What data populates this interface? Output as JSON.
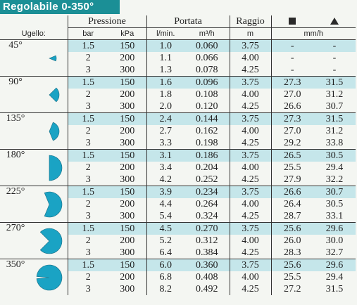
{
  "title": "Regolabile 0-350°",
  "headers": {
    "ugello": "Ugello:",
    "pressione": "Pressione",
    "portata": "Portata",
    "raggio": "Raggio",
    "square_icon": "square-icon",
    "triangle_icon": "triangle-icon",
    "bar": "bar",
    "kpa": "kPa",
    "lmin": "l/min.",
    "m3h": "m³/h",
    "m": "m",
    "mmh": "mm/h"
  },
  "colors": {
    "accent": "#1b8f96",
    "icon_fill": "#1aa3c4",
    "row_tint": "#c5e6ea"
  },
  "groups": [
    {
      "angle": "45°",
      "rows": [
        {
          "bar": "1.5",
          "kpa": "150",
          "lmin": "1.0",
          "m3h": "0.060",
          "m": "3.75",
          "sq": "-",
          "tri": "-"
        },
        {
          "bar": "2",
          "kpa": "200",
          "lmin": "1.1",
          "m3h": "0.066",
          "m": "4.00",
          "sq": "-",
          "tri": "-"
        },
        {
          "bar": "3",
          "kpa": "300",
          "lmin": "1.3",
          "m3h": "0.078",
          "m": "4.25",
          "sq": "-",
          "tri": "-"
        }
      ]
    },
    {
      "angle": "90°",
      "rows": [
        {
          "bar": "1.5",
          "kpa": "150",
          "lmin": "1.6",
          "m3h": "0.096",
          "m": "3.75",
          "sq": "27.3",
          "tri": "31.5"
        },
        {
          "bar": "2",
          "kpa": "200",
          "lmin": "1.8",
          "m3h": "0.108",
          "m": "4.00",
          "sq": "27.0",
          "tri": "31.2"
        },
        {
          "bar": "3",
          "kpa": "300",
          "lmin": "2.0",
          "m3h": "0.120",
          "m": "4.25",
          "sq": "26.6",
          "tri": "30.7"
        }
      ]
    },
    {
      "angle": "135°",
      "rows": [
        {
          "bar": "1.5",
          "kpa": "150",
          "lmin": "2.4",
          "m3h": "0.144",
          "m": "3.75",
          "sq": "27.3",
          "tri": "31.5"
        },
        {
          "bar": "2",
          "kpa": "200",
          "lmin": "2.7",
          "m3h": "0.162",
          "m": "4.00",
          "sq": "27.0",
          "tri": "31.2"
        },
        {
          "bar": "3",
          "kpa": "300",
          "lmin": "3.3",
          "m3h": "0.198",
          "m": "4.25",
          "sq": "29.2",
          "tri": "33.8"
        }
      ]
    },
    {
      "angle": "180°",
      "rows": [
        {
          "bar": "1.5",
          "kpa": "150",
          "lmin": "3.1",
          "m3h": "0.186",
          "m": "3.75",
          "sq": "26.5",
          "tri": "30.5"
        },
        {
          "bar": "2",
          "kpa": "200",
          "lmin": "3.4",
          "m3h": "0.204",
          "m": "4.00",
          "sq": "25.5",
          "tri": "29.4"
        },
        {
          "bar": "3",
          "kpa": "300",
          "lmin": "4.2",
          "m3h": "0.252",
          "m": "4.25",
          "sq": "27.9",
          "tri": "32.2"
        }
      ]
    },
    {
      "angle": "225°",
      "rows": [
        {
          "bar": "1.5",
          "kpa": "150",
          "lmin": "3.9",
          "m3h": "0.234",
          "m": "3.75",
          "sq": "26.6",
          "tri": "30.7"
        },
        {
          "bar": "2",
          "kpa": "200",
          "lmin": "4.4",
          "m3h": "0.264",
          "m": "4.00",
          "sq": "26.4",
          "tri": "30.5"
        },
        {
          "bar": "3",
          "kpa": "300",
          "lmin": "5.4",
          "m3h": "0.324",
          "m": "4.25",
          "sq": "28.7",
          "tri": "33.1"
        }
      ]
    },
    {
      "angle": "270°",
      "rows": [
        {
          "bar": "1.5",
          "kpa": "150",
          "lmin": "4.5",
          "m3h": "0.270",
          "m": "3.75",
          "sq": "25.6",
          "tri": "29.6"
        },
        {
          "bar": "2",
          "kpa": "200",
          "lmin": "5.2",
          "m3h": "0.312",
          "m": "4.00",
          "sq": "26.0",
          "tri": "30.0"
        },
        {
          "bar": "3",
          "kpa": "300",
          "lmin": "6.4",
          "m3h": "0.384",
          "m": "4.25",
          "sq": "28.3",
          "tri": "32.7"
        }
      ]
    },
    {
      "angle": "350°",
      "rows": [
        {
          "bar": "1.5",
          "kpa": "150",
          "lmin": "6.0",
          "m3h": "0.360",
          "m": "3.75",
          "sq": "25.6",
          "tri": "29.6"
        },
        {
          "bar": "2",
          "kpa": "200",
          "lmin": "6.8",
          "m3h": "0.408",
          "m": "4.00",
          "sq": "25.5",
          "tri": "29.4"
        },
        {
          "bar": "3",
          "kpa": "300",
          "lmin": "8.2",
          "m3h": "0.492",
          "m": "4.25",
          "sq": "27.2",
          "tri": "31.5"
        }
      ]
    }
  ]
}
